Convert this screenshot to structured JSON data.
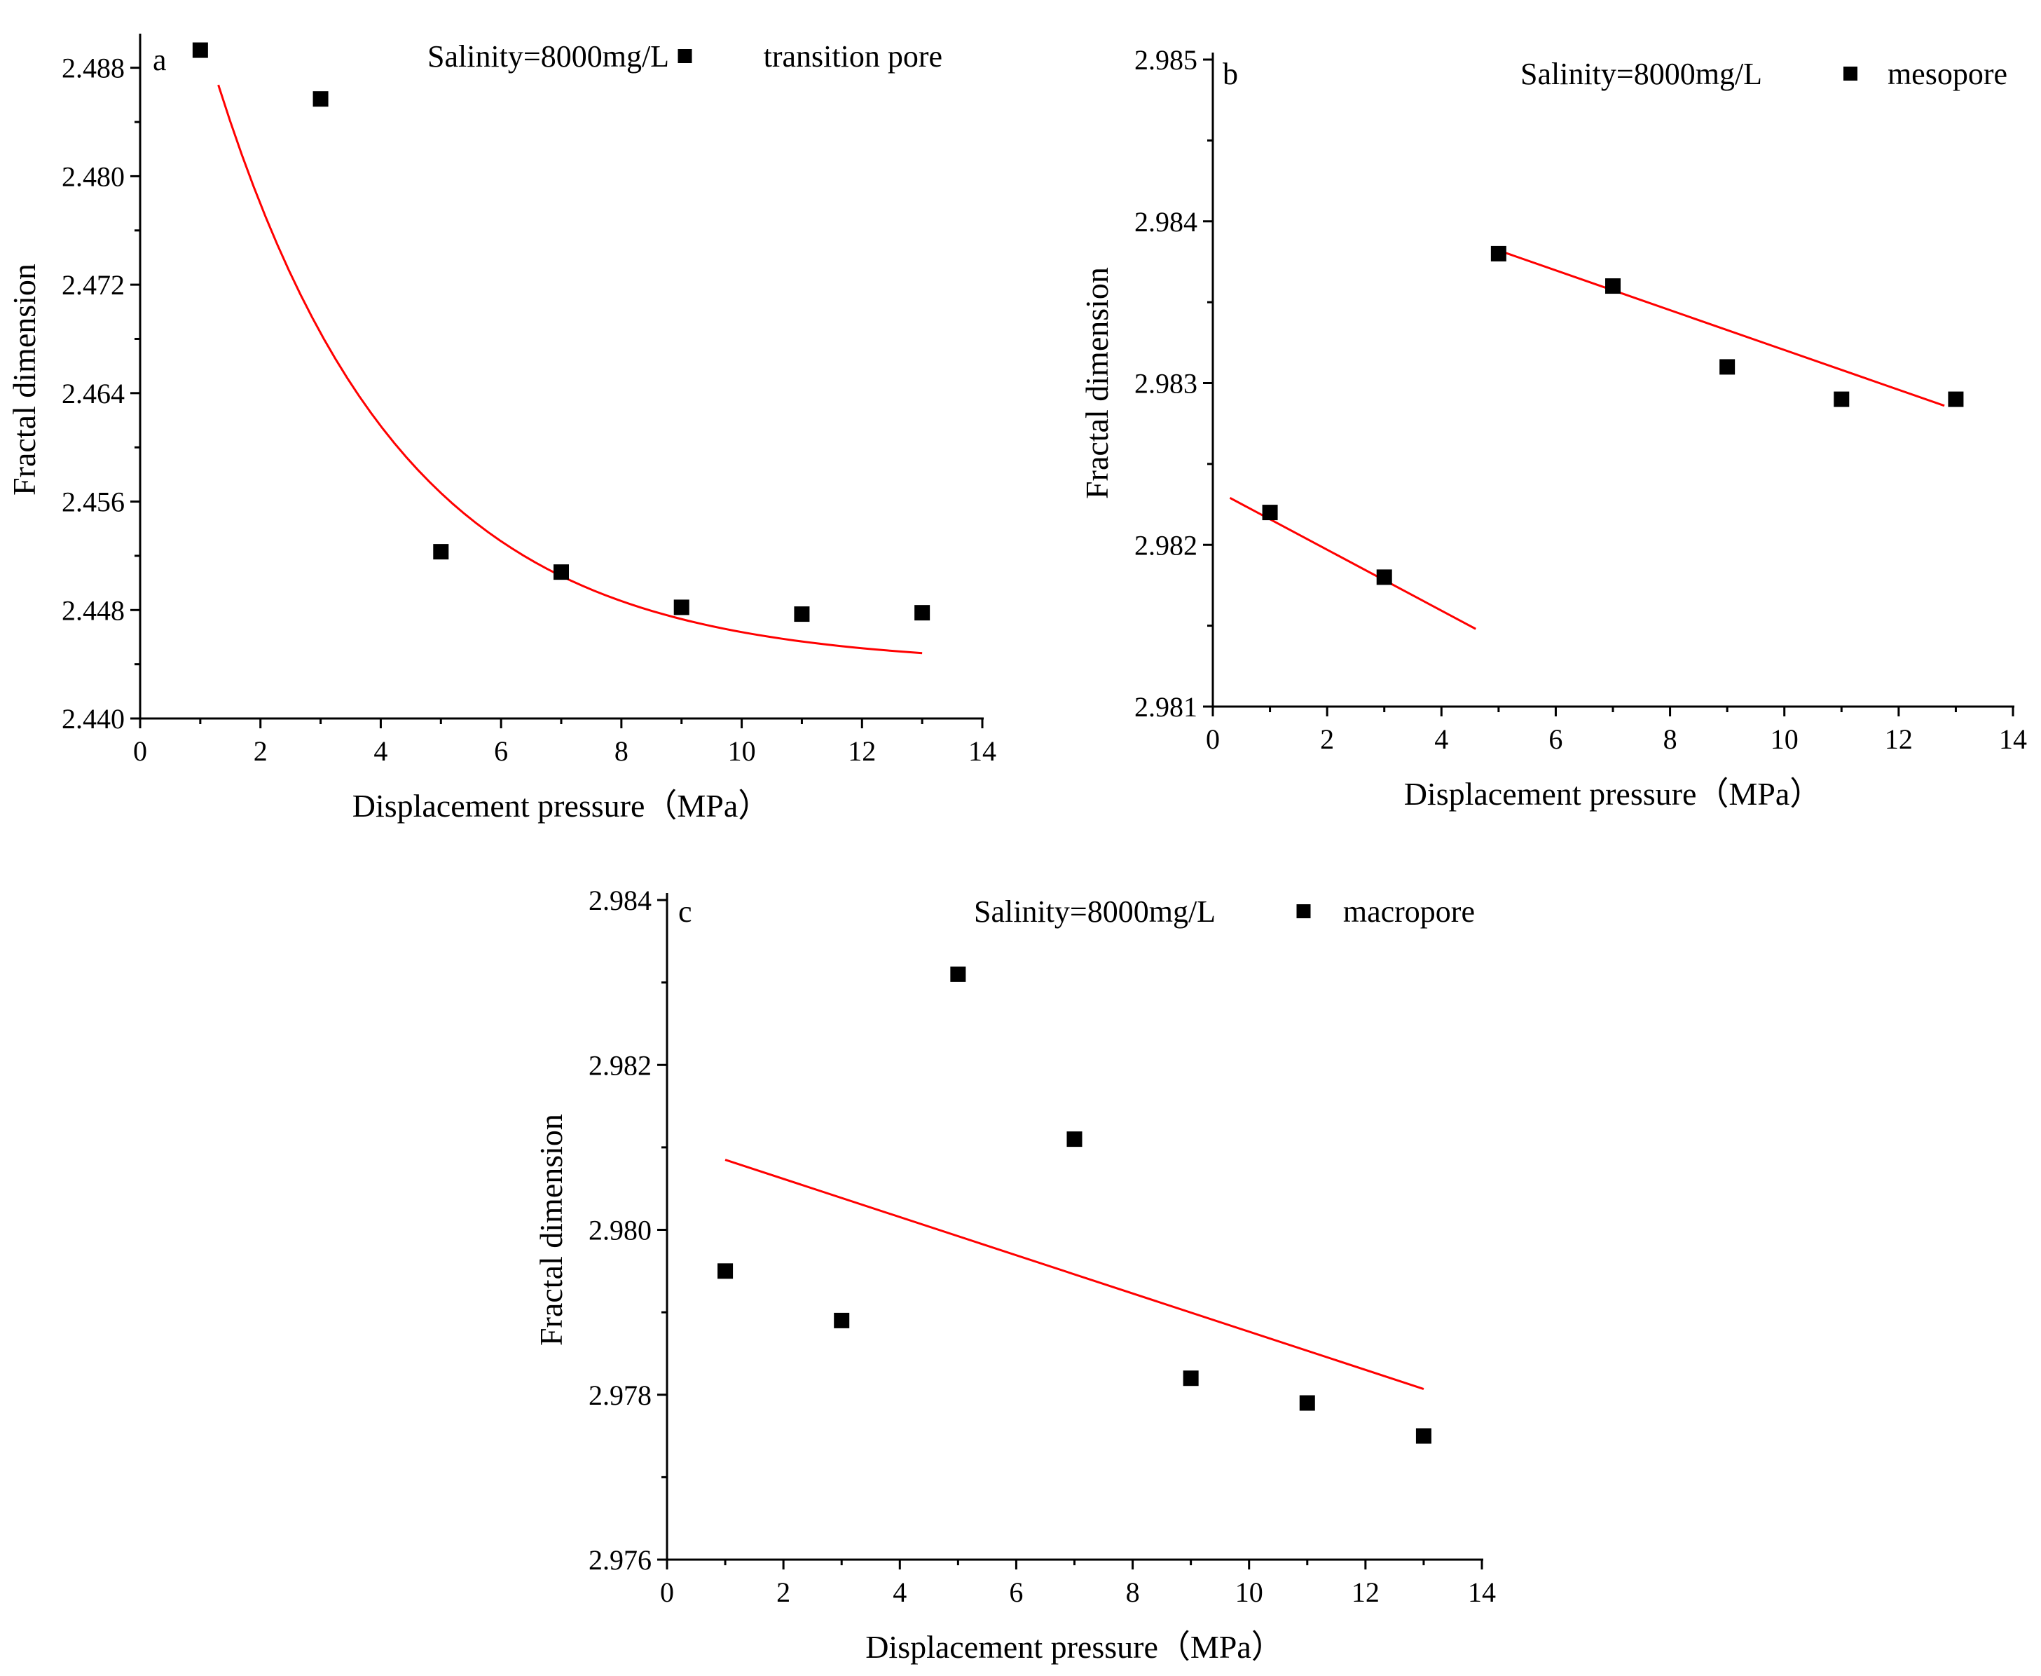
{
  "chart_data": [
    {
      "type": "scatter",
      "panel_label": "a",
      "annotation": "Salinity=8000mg/L",
      "legend": {
        "marker": "square",
        "label": "transition pore",
        "position": "top-right"
      },
      "xlabel": "Displacement pressure（MPa）",
      "ylabel": "Fractal dimension",
      "xlim": [
        0,
        14
      ],
      "ylim": [
        2.44,
        2.49
      ],
      "xticks": [
        0,
        2,
        4,
        6,
        8,
        10,
        12,
        14
      ],
      "xtick_labels": [
        "0",
        "2",
        "4",
        "6",
        "8",
        "10",
        "12",
        "14"
      ],
      "yticks": [
        2.44,
        2.448,
        2.456,
        2.464,
        2.472,
        2.48,
        2.488
      ],
      "ytick_labels": [
        "2.440",
        "2.448",
        "2.456",
        "2.464",
        "2.472",
        "2.480",
        "2.488"
      ],
      "series": [
        {
          "name": "transition pore",
          "x": [
            1,
            3,
            5,
            7,
            9,
            11,
            13
          ],
          "y": [
            2.4893,
            2.4857,
            2.4523,
            2.4508,
            2.4482,
            2.4477,
            2.4478
          ]
        }
      ],
      "fits": [
        {
          "type": "exponential",
          "x0": 1.3,
          "x1": 13,
          "y0_asym": 2.4439,
          "amplitude": 0.0656,
          "decay": 3.05,
          "color": "#ff0000"
        }
      ]
    },
    {
      "type": "scatter",
      "panel_label": "b",
      "annotation": "Salinity=8000mg/L",
      "legend": {
        "marker": "square",
        "label": "mesopore",
        "position": "top-right"
      },
      "xlabel": "Displacement pressure（MPa）",
      "ylabel": "Fractal dimension",
      "xlim": [
        0,
        14
      ],
      "ylim": [
        2.981,
        2.985
      ],
      "xticks": [
        0,
        2,
        4,
        6,
        8,
        10,
        12,
        14
      ],
      "xtick_labels": [
        "0",
        "2",
        "4",
        "6",
        "8",
        "10",
        "12",
        "14"
      ],
      "yticks": [
        2.981,
        2.982,
        2.983,
        2.984,
        2.985
      ],
      "ytick_labels": [
        "2.981",
        "2.982",
        "2.983",
        "2.984",
        "2.985"
      ],
      "series": [
        {
          "name": "mesopore",
          "x": [
            1,
            3,
            5,
            7,
            9,
            11,
            13
          ],
          "y": [
            2.9822,
            2.9818,
            2.9838,
            2.9836,
            2.9831,
            2.9829,
            2.9829
          ]
        }
      ],
      "fits": [
        {
          "type": "linear",
          "x": [
            0.3,
            4.6
          ],
          "y": [
            2.98229,
            2.98148
          ],
          "color": "#ff0000"
        },
        {
          "type": "linear",
          "x": [
            5.0,
            12.8
          ],
          "y": [
            2.98382,
            2.98286
          ],
          "color": "#ff0000"
        }
      ]
    },
    {
      "type": "scatter",
      "panel_label": "c",
      "annotation": "Salinity=8000mg/L",
      "legend": {
        "marker": "square",
        "label": "macropore",
        "position": "top-right"
      },
      "xlabel": "Displacement pressure（MPa）",
      "ylabel": "Fractal dimension",
      "xlim": [
        0,
        14
      ],
      "ylim": [
        2.976,
        2.984
      ],
      "xticks": [
        0,
        2,
        4,
        6,
        8,
        10,
        12,
        14
      ],
      "xtick_labels": [
        "0",
        "2",
        "4",
        "6",
        "8",
        "10",
        "12",
        "14"
      ],
      "yticks": [
        2.976,
        2.978,
        2.98,
        2.982,
        2.984
      ],
      "ytick_labels": [
        "2.976",
        "2.978",
        "2.980",
        "2.982",
        "2.984"
      ],
      "series": [
        {
          "name": "macropore",
          "x": [
            1,
            3,
            5,
            7,
            9,
            11,
            13
          ],
          "y": [
            2.9795,
            2.9789,
            2.9831,
            2.9811,
            2.9782,
            2.9779,
            2.9775
          ]
        }
      ],
      "fits": [
        {
          "type": "linear",
          "x": [
            1,
            13
          ],
          "y": [
            2.98085,
            2.97807
          ],
          "color": "#ff0000"
        }
      ]
    }
  ],
  "colors": {
    "fit_line": "#ff0000",
    "marker": "#000000",
    "axis": "#000000"
  }
}
